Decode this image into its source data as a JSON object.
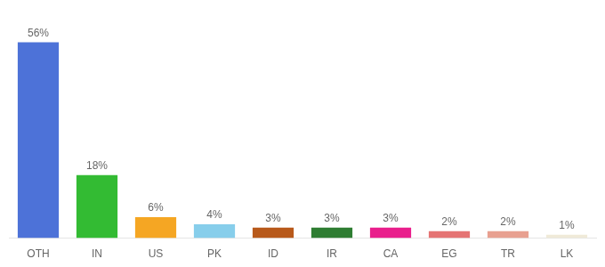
{
  "chart_data": {
    "type": "bar",
    "categories": [
      "OTH",
      "IN",
      "US",
      "PK",
      "ID",
      "IR",
      "CA",
      "EG",
      "TR",
      "LK"
    ],
    "values": [
      56,
      18,
      6,
      4,
      3,
      3,
      3,
      2,
      2,
      1
    ],
    "value_labels": [
      "56%",
      "18%",
      "6%",
      "4%",
      "3%",
      "3%",
      "3%",
      "2%",
      "2%",
      "1%"
    ],
    "colors": [
      "#4d72d8",
      "#33bb33",
      "#f5a623",
      "#87ceeb",
      "#b8591a",
      "#2e7d32",
      "#e91e8c",
      "#e57373",
      "#e8a090",
      "#f0ead8"
    ],
    "ylim": [
      0,
      63
    ],
    "grid": false,
    "data_labels": true,
    "tick_labels": "x"
  }
}
